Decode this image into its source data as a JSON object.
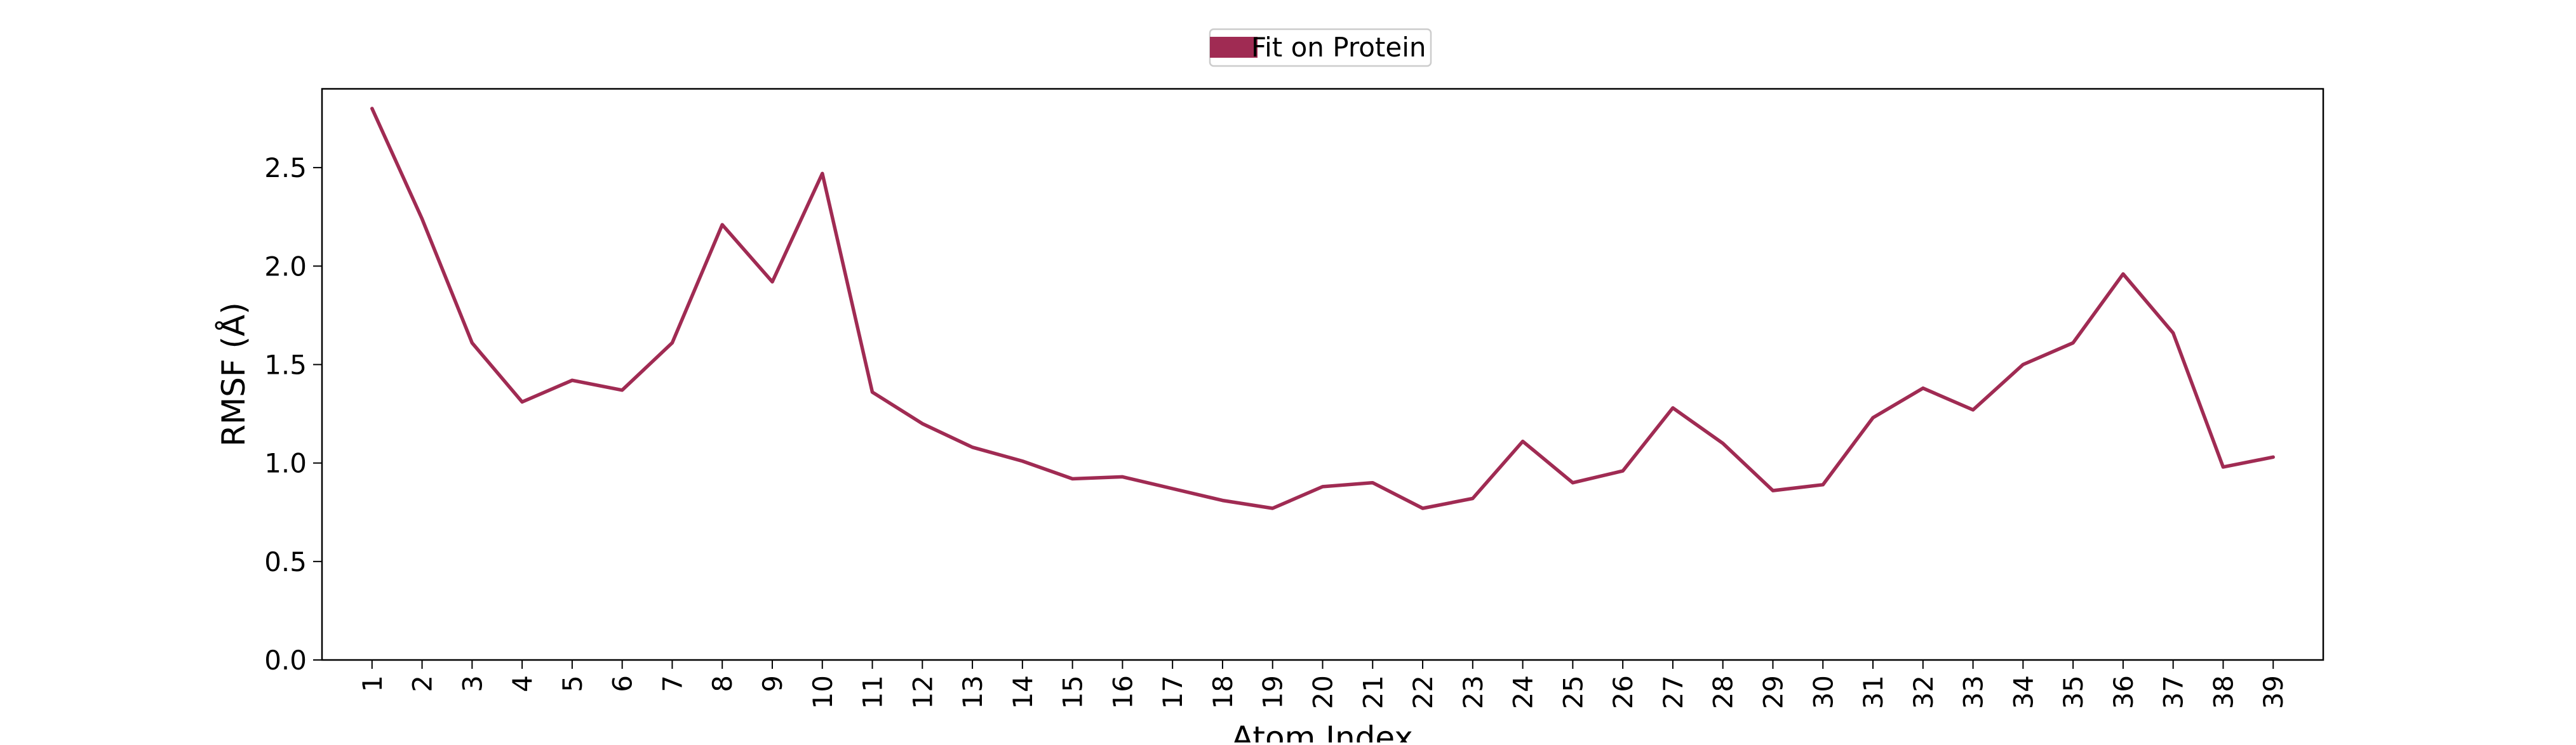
{
  "chart_data": {
    "type": "line",
    "title": "",
    "xlabel": "Atom Index",
    "ylabel": "RMSF (Å)",
    "legend": {
      "placement": "top-center",
      "entries": [
        "Fit on Protein"
      ]
    },
    "grid": false,
    "xlim": [
      0,
      40
    ],
    "ylim": [
      0,
      2.9
    ],
    "x_ticks": [
      1,
      2,
      3,
      4,
      5,
      6,
      7,
      8,
      9,
      10,
      11,
      12,
      13,
      14,
      15,
      16,
      17,
      18,
      19,
      20,
      21,
      22,
      23,
      24,
      25,
      26,
      27,
      28,
      29,
      30,
      31,
      32,
      33,
      34,
      35,
      36,
      37,
      38,
      39
    ],
    "y_ticks": [
      0.0,
      0.5,
      1.0,
      1.5,
      2.0,
      2.5
    ],
    "y_tick_labels": [
      "0.0",
      "0.5",
      "1.0",
      "1.5",
      "2.0",
      "2.5"
    ],
    "series": [
      {
        "name": "Fit on Protein",
        "color": "#a02b53",
        "x": [
          1,
          2,
          3,
          4,
          5,
          6,
          7,
          8,
          9,
          10,
          11,
          12,
          13,
          14,
          15,
          16,
          17,
          18,
          19,
          20,
          21,
          22,
          23,
          24,
          25,
          26,
          27,
          28,
          29,
          30,
          31,
          32,
          33,
          34,
          35,
          36,
          37,
          38,
          39
        ],
        "y": [
          2.8,
          2.24,
          1.61,
          1.31,
          1.42,
          1.37,
          1.61,
          2.21,
          1.92,
          2.47,
          1.36,
          1.2,
          1.08,
          1.01,
          0.92,
          0.93,
          0.87,
          0.81,
          0.77,
          0.88,
          0.9,
          0.77,
          0.82,
          1.11,
          0.9,
          0.96,
          1.28,
          1.1,
          0.86,
          0.89,
          1.23,
          1.38,
          1.27,
          1.5,
          1.61,
          1.96,
          1.66,
          0.98,
          1.03
        ]
      }
    ]
  }
}
